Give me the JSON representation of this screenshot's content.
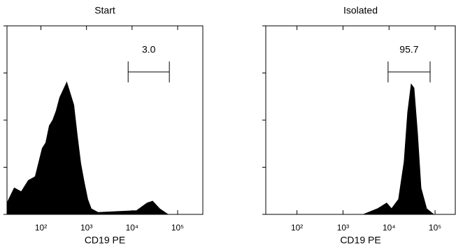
{
  "chart_data": [
    {
      "type": "area",
      "title": "Start",
      "x_label": "CD19 PE",
      "xscale": "log",
      "color": "#000000",
      "xlim": [
        18,
        357000
      ],
      "ylim": [
        0,
        100
      ],
      "xticks": [
        {
          "value": 100,
          "label": "10²"
        },
        {
          "value": 1000,
          "label": "10³"
        },
        {
          "value": 10000,
          "label": "10⁴"
        },
        {
          "value": 100000,
          "label": "10⁵"
        }
      ],
      "yticks": [
        0,
        25,
        50,
        75,
        100
      ],
      "x": [
        18,
        26,
        37,
        53,
        75,
        107,
        128,
        153,
        182,
        217,
        259,
        309,
        369,
        440,
        525,
        625,
        746,
        890,
        1061,
        1266,
        1803,
        12530,
        21270,
        28180,
        40100,
        61200
      ],
      "values": [
        6,
        14,
        12,
        18,
        20,
        35,
        38,
        47,
        50,
        55,
        62,
        66,
        70,
        64,
        58,
        42,
        27,
        17,
        8,
        3,
        1,
        2,
        6,
        7,
        3,
        0
      ],
      "gate": {
        "xrange": [
          8200,
          65800
        ],
        "value": 3.0,
        "label": "3.0"
      }
    },
    {
      "type": "area",
      "title": "Isolated",
      "x_label": "CD19 PE",
      "xscale": "log",
      "color": "#000000",
      "xlim": [
        21,
        275000
      ],
      "ylim": [
        0,
        100
      ],
      "xticks": [
        {
          "value": 100,
          "label": "10²"
        },
        {
          "value": 1000,
          "label": "10³"
        },
        {
          "value": 10000,
          "label": "10⁴"
        },
        {
          "value": 100000,
          "label": "10⁵"
        }
      ],
      "yticks": [
        0,
        25,
        50,
        75,
        100
      ],
      "x": [
        2790,
        5630,
        8870,
        11350,
        16100,
        21300,
        25400,
        30300,
        34800,
        41500,
        49400,
        65500,
        93000
      ],
      "values": [
        0,
        3,
        6,
        3,
        8,
        28,
        54,
        69,
        67,
        43,
        14,
        3,
        0
      ],
      "gate": {
        "xrange": [
          9530,
          78000
        ],
        "value": 95.7,
        "label": "95.7"
      }
    }
  ]
}
